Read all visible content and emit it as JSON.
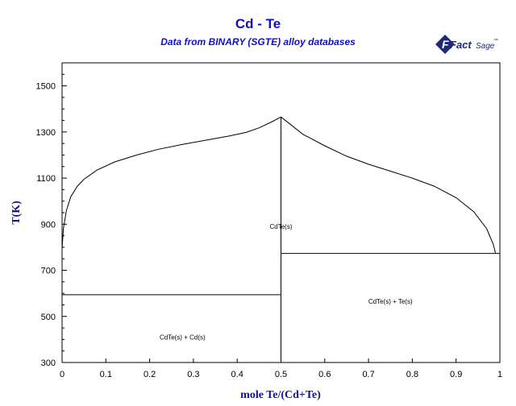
{
  "header": {
    "title": "Cd - Te",
    "subtitle": "Data from BINARY (SGTE) alloy databases"
  },
  "logo": {
    "text_fact": "Fact",
    "text_sage": "Sage",
    "trademark": "™",
    "brand_color": "#1e2a78"
  },
  "chart_data": {
    "type": "line",
    "title": "Cd - Te",
    "subtitle": "Data from BINARY (SGTE) alloy databases",
    "xlabel": "mole Te/(Cd+Te)",
    "ylabel": "T(K)",
    "xlim": [
      0,
      1
    ],
    "ylim": [
      300,
      1600
    ],
    "xticks": [
      0,
      0.1,
      0.2,
      0.3,
      0.4,
      0.5,
      0.6,
      0.7,
      0.8,
      0.9,
      1
    ],
    "xtick_labels": [
      "0",
      "0.1",
      "0.2",
      "0.3",
      "0.4",
      "0.5",
      "0.6",
      "0.7",
      "0.8",
      "0.9",
      "1"
    ],
    "yticks": [
      300,
      500,
      700,
      900,
      1100,
      1300,
      1500
    ],
    "ytick_labels": [
      "300",
      "500",
      "700",
      "900",
      "1100",
      "1300",
      "1500"
    ],
    "grid": false,
    "line_color": "#000000",
    "series": [
      {
        "values": [
          [
            0.0,
            794
          ],
          [
            0.003,
            880
          ],
          [
            0.01,
            960
          ],
          [
            0.02,
            1020
          ],
          [
            0.035,
            1065
          ],
          [
            0.05,
            1095
          ],
          [
            0.08,
            1135
          ],
          [
            0.12,
            1170
          ],
          [
            0.17,
            1200
          ],
          [
            0.22,
            1225
          ],
          [
            0.28,
            1248
          ],
          [
            0.33,
            1265
          ],
          [
            0.38,
            1282
          ],
          [
            0.42,
            1298
          ],
          [
            0.45,
            1318
          ],
          [
            0.48,
            1345
          ],
          [
            0.5,
            1365
          ]
        ]
      },
      {
        "values": [
          [
            0.5,
            1365
          ],
          [
            0.52,
            1335
          ],
          [
            0.55,
            1290
          ],
          [
            0.6,
            1240
          ],
          [
            0.65,
            1195
          ],
          [
            0.7,
            1160
          ],
          [
            0.75,
            1130
          ],
          [
            0.8,
            1100
          ],
          [
            0.85,
            1065
          ],
          [
            0.9,
            1015
          ],
          [
            0.94,
            955
          ],
          [
            0.97,
            880
          ],
          [
            0.985,
            812
          ],
          [
            0.99,
            773
          ]
        ]
      },
      {
        "values": [
          [
            0.5,
            300
          ],
          [
            0.5,
            1365
          ]
        ]
      },
      {
        "values": [
          [
            0.0,
            594
          ],
          [
            0.5,
            594
          ]
        ]
      },
      {
        "values": [
          [
            0.5,
            773
          ],
          [
            1.0,
            773
          ]
        ]
      }
    ],
    "annotations": [
      {
        "text": "CdTe(s)",
        "x": 0.5,
        "y": 880
      },
      {
        "text": "CdTe(s) + Te(s)",
        "x": 0.75,
        "y": 555
      },
      {
        "text": "CdTe(s) + Cd(s)",
        "x": 0.275,
        "y": 400
      }
    ]
  }
}
